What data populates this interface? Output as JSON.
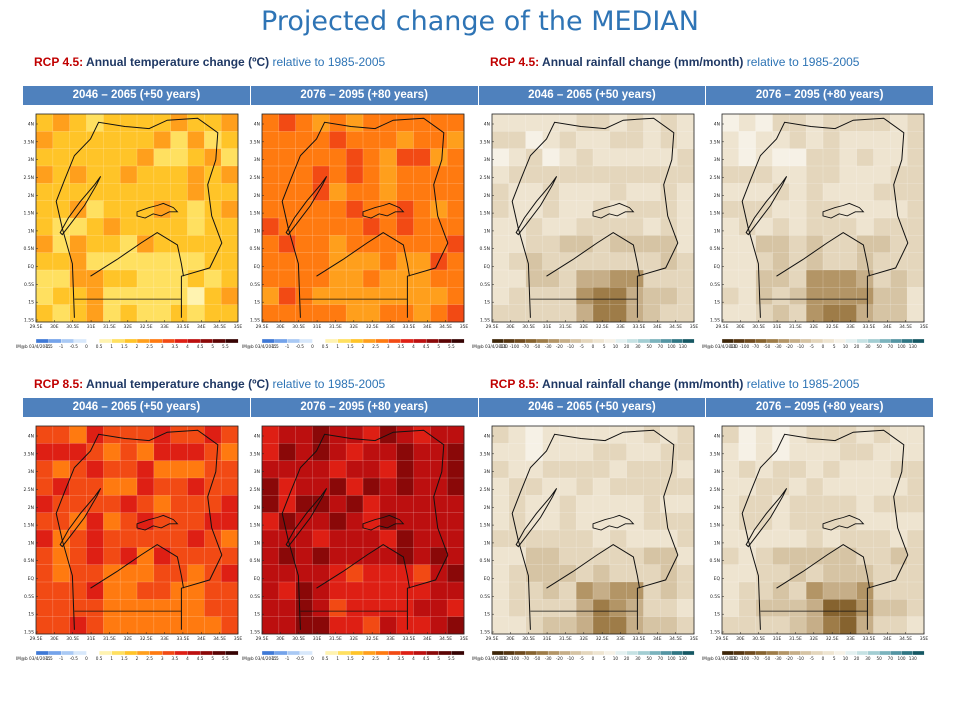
{
  "title": "Projected change of the MEDIAN",
  "sections": [
    {
      "captions": [
        {
          "rcp": "RCP 4.5",
          "sep": ":",
          "variable": "Annual temperature change (ºC)",
          "relative": "relative to 1985-2005"
        },
        {
          "rcp": "RCP 4.5",
          "sep": ":",
          "variable": "Annual rainfall change (mm/month)",
          "relative": "relative to 1985-2005"
        }
      ],
      "headers": [
        "2046 – 2065  (+50 years)",
        "2076 – 2095  (+80 years)",
        "2046 – 2065  (+50 years)",
        "2076 – 2095  (+80 years)"
      ]
    },
    {
      "captions": [
        {
          "rcp": "RCP 8.5",
          "sep": ":",
          "variable": "Annual temperature change (ºC)",
          "relative": "relative to 1985-2005"
        },
        {
          "rcp": "RCP 8.5",
          "sep": ":",
          "variable": "Annual rainfall change (mm/month)",
          "relative": "relative to 1985-2005"
        }
      ],
      "headers": [
        "2046 – 2065  (+50 years)",
        "2076 – 2095  (+80 years)",
        "2046 – 2065  (+50 years)",
        "2076 – 2095  (+80 years)"
      ]
    }
  ],
  "map_axes": {
    "lat_labels": [
      "4N",
      "3.5N",
      "3N",
      "2.5N",
      "2N",
      "1.5N",
      "1N",
      "0.5N",
      "EQ",
      "0.5S",
      "1S",
      "1.5S"
    ],
    "lon_labels": [
      "29.5E",
      "30E",
      "30.5E",
      "31E",
      "31.5E",
      "32E",
      "32.5E",
      "33E",
      "33.5E",
      "34E",
      "34.5E",
      "35E"
    ],
    "stamp": "IM@b 03/4/2015"
  },
  "temperature_scale": {
    "labels": [
      "-1.5",
      "-1",
      "-0.5",
      "0",
      "0.5",
      "1",
      "1.5",
      "2",
      "2.5",
      "3",
      "3.5",
      "4",
      "4.5",
      "5",
      "5.5"
    ],
    "colors": [
      "#3f79d6",
      "#74a3ea",
      "#a9c9f4",
      "#d8e8fb",
      "#ffffff",
      "#fff3b0",
      "#ffe060",
      "#ffc428",
      "#ff9f1c",
      "#ff7a10",
      "#f24a14",
      "#de1f14",
      "#bc0f0f",
      "#8a0808",
      "#5c0404",
      "#360202"
    ]
  },
  "rainfall_scale": {
    "labels": [
      "-130",
      "-100",
      "-70",
      "-50",
      "-30",
      "-20",
      "-10",
      "-5",
      "0",
      "5",
      "10",
      "20",
      "30",
      "50",
      "70",
      "100",
      "130"
    ],
    "colors": [
      "#3d2508",
      "#553511",
      "#6e4a1e",
      "#86632f",
      "#9e7c48",
      "#b39566",
      "#c6ae88",
      "#d6c4a4",
      "#e4d6bc",
      "#eee4d0",
      "#f6f1e6",
      "#e3f0f0",
      "#c5e1e3",
      "#a2cdd2",
      "#7bb3bd",
      "#5495a3",
      "#2f7683",
      "#155763"
    ]
  },
  "panels": [
    {
      "id": "rcp45-temp-2050",
      "kind": "temp",
      "level": 7
    },
    {
      "id": "rcp45-temp-2080",
      "kind": "temp",
      "level": 9
    },
    {
      "id": "rcp45-rain-2050",
      "kind": "rain",
      "level": 0
    },
    {
      "id": "rcp45-rain-2080",
      "kind": "rain",
      "level": 0
    },
    {
      "id": "rcp85-temp-2050",
      "kind": "temp",
      "level": 10
    },
    {
      "id": "rcp85-temp-2080",
      "kind": "temp",
      "level": 12
    },
    {
      "id": "rcp85-rain-2050",
      "kind": "rain",
      "level": 0
    },
    {
      "id": "rcp85-rain-2080",
      "kind": "rain",
      "level": 1
    }
  ]
}
